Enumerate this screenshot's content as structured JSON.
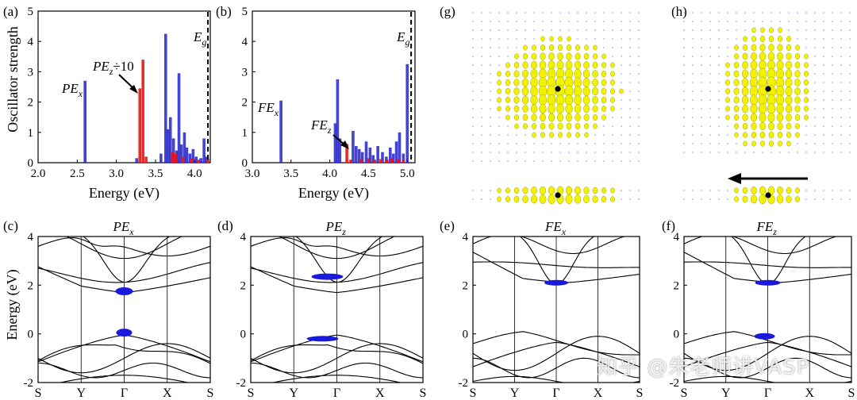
{
  "watermark": "知乎 @朱老师讲VASP",
  "colors": {
    "blue": "#2222cc",
    "red": "#ee1111",
    "band": "#000000",
    "fat": "#1a1adc",
    "iso": "#f2f200",
    "dot": "#000000"
  },
  "chart_data": [
    {
      "panel": "(a)",
      "type": "bar",
      "ylabel": "Oscillator strength",
      "xlabel": "Energy (eV)",
      "xlim": [
        2.0,
        4.2
      ],
      "ylim": [
        0,
        5
      ],
      "xticks": [
        "2.0",
        "2.5",
        "3.0",
        "3.5",
        "4.0"
      ],
      "yticks": [
        "0",
        "1",
        "2",
        "3",
        "4",
        "5"
      ],
      "gap_label": "E_g",
      "gap_energy": 4.17,
      "series": [
        {
          "name": "blue",
          "x": [
            2.6,
            3.26,
            3.57,
            3.63,
            3.66,
            3.69,
            3.73,
            3.77,
            3.8,
            3.83,
            3.87,
            3.9,
            3.94,
            3.98,
            4.02,
            4.08,
            4.12,
            4.15
          ],
          "values": [
            2.7,
            0.15,
            0.3,
            4.25,
            1.1,
            1.5,
            0.8,
            0.4,
            2.95,
            0.6,
            1.0,
            0.5,
            0.3,
            0.45,
            0.2,
            0.15,
            0.8,
            0.2
          ]
        },
        {
          "name": "red",
          "x": [
            3.3,
            3.34,
            3.38,
            3.72,
            3.76,
            3.85,
            3.96,
            4.05,
            4.17
          ],
          "values": [
            2.45,
            3.4,
            0.2,
            0.35,
            0.3,
            0.2,
            0.15,
            0.1,
            0.12
          ]
        }
      ],
      "annotations": [
        {
          "label": "PE",
          "sub": "x",
          "suffix": ""
        },
        {
          "label": "PE",
          "sub": "z",
          "suffix": "÷10"
        }
      ]
    },
    {
      "panel": "(b)",
      "type": "bar",
      "ylabel": "",
      "xlabel": "Energy (eV)",
      "xlim": [
        3.0,
        5.1
      ],
      "ylim": [
        0,
        5
      ],
      "xticks": [
        "3.0",
        "3.5",
        "4.0",
        "4.5",
        "5.0"
      ],
      "yticks": [
        "0",
        "1",
        "2",
        "3",
        "4",
        "5"
      ],
      "gap_label": "E_g",
      "gap_energy": 5.05,
      "series": [
        {
          "name": "blue",
          "x": [
            3.37,
            4.07,
            4.1,
            4.13,
            4.3,
            4.34,
            4.38,
            4.42,
            4.47,
            4.52,
            4.56,
            4.62,
            4.68,
            4.73,
            4.78,
            4.82,
            4.86,
            4.9,
            4.95,
            5.0
          ],
          "values": [
            2.05,
            1.3,
            2.75,
            0.8,
            1.05,
            0.55,
            0.45,
            0.35,
            0.7,
            0.5,
            0.25,
            0.55,
            0.35,
            0.2,
            0.5,
            0.3,
            0.7,
            1.0,
            0.3,
            3.25
          ]
        },
        {
          "name": "red",
          "x": [
            4.22,
            4.27,
            4.4,
            4.5,
            4.58,
            4.66,
            4.74,
            4.8,
            4.88,
            4.95
          ],
          "values": [
            0.62,
            0.1,
            0.12,
            0.15,
            0.1,
            0.12,
            0.1,
            0.15,
            0.12,
            0.1
          ]
        }
      ],
      "annotations": [
        {
          "label": "FE",
          "sub": "x",
          "suffix": ""
        },
        {
          "label": "FE",
          "sub": "z",
          "suffix": ""
        }
      ]
    },
    {
      "panel": "(c)",
      "type": "line",
      "title": "PE",
      "title_sub": "x",
      "ylabel": "Energy (eV)",
      "ylim": [
        -2,
        4
      ],
      "yticks": [
        "4",
        "2",
        "0",
        "-2"
      ],
      "kpoints": [
        "S",
        "Y",
        "Γ",
        "X",
        "S"
      ]
    },
    {
      "panel": "(d)",
      "type": "line",
      "title": "PE",
      "title_sub": "z",
      "ylabel": "",
      "ylim": [
        -2,
        4
      ],
      "yticks": [
        "4",
        "2",
        "0",
        "-2"
      ],
      "kpoints": [
        "S",
        "Y",
        "Γ",
        "X",
        "S"
      ]
    },
    {
      "panel": "(e)",
      "type": "line",
      "title": "FE",
      "title_sub": "x",
      "ylabel": "",
      "ylim": [
        -2,
        4
      ],
      "yticks": [
        "4",
        "2",
        "0",
        "-2"
      ],
      "kpoints": [
        "S",
        "Y",
        "Γ",
        "X",
        "S"
      ]
    },
    {
      "panel": "(f)",
      "type": "line",
      "title": "FE",
      "title_sub": "z",
      "ylabel": "",
      "ylim": [
        -2,
        4
      ],
      "yticks": [
        "4",
        "2",
        "0",
        "-2"
      ],
      "kpoints": [
        "S",
        "Y",
        "Γ",
        "X",
        "S"
      ]
    },
    {
      "panel": "(g)",
      "type": "heatmap",
      "description_free": true
    },
    {
      "panel": "(h)",
      "type": "heatmap",
      "description_free": true
    }
  ]
}
